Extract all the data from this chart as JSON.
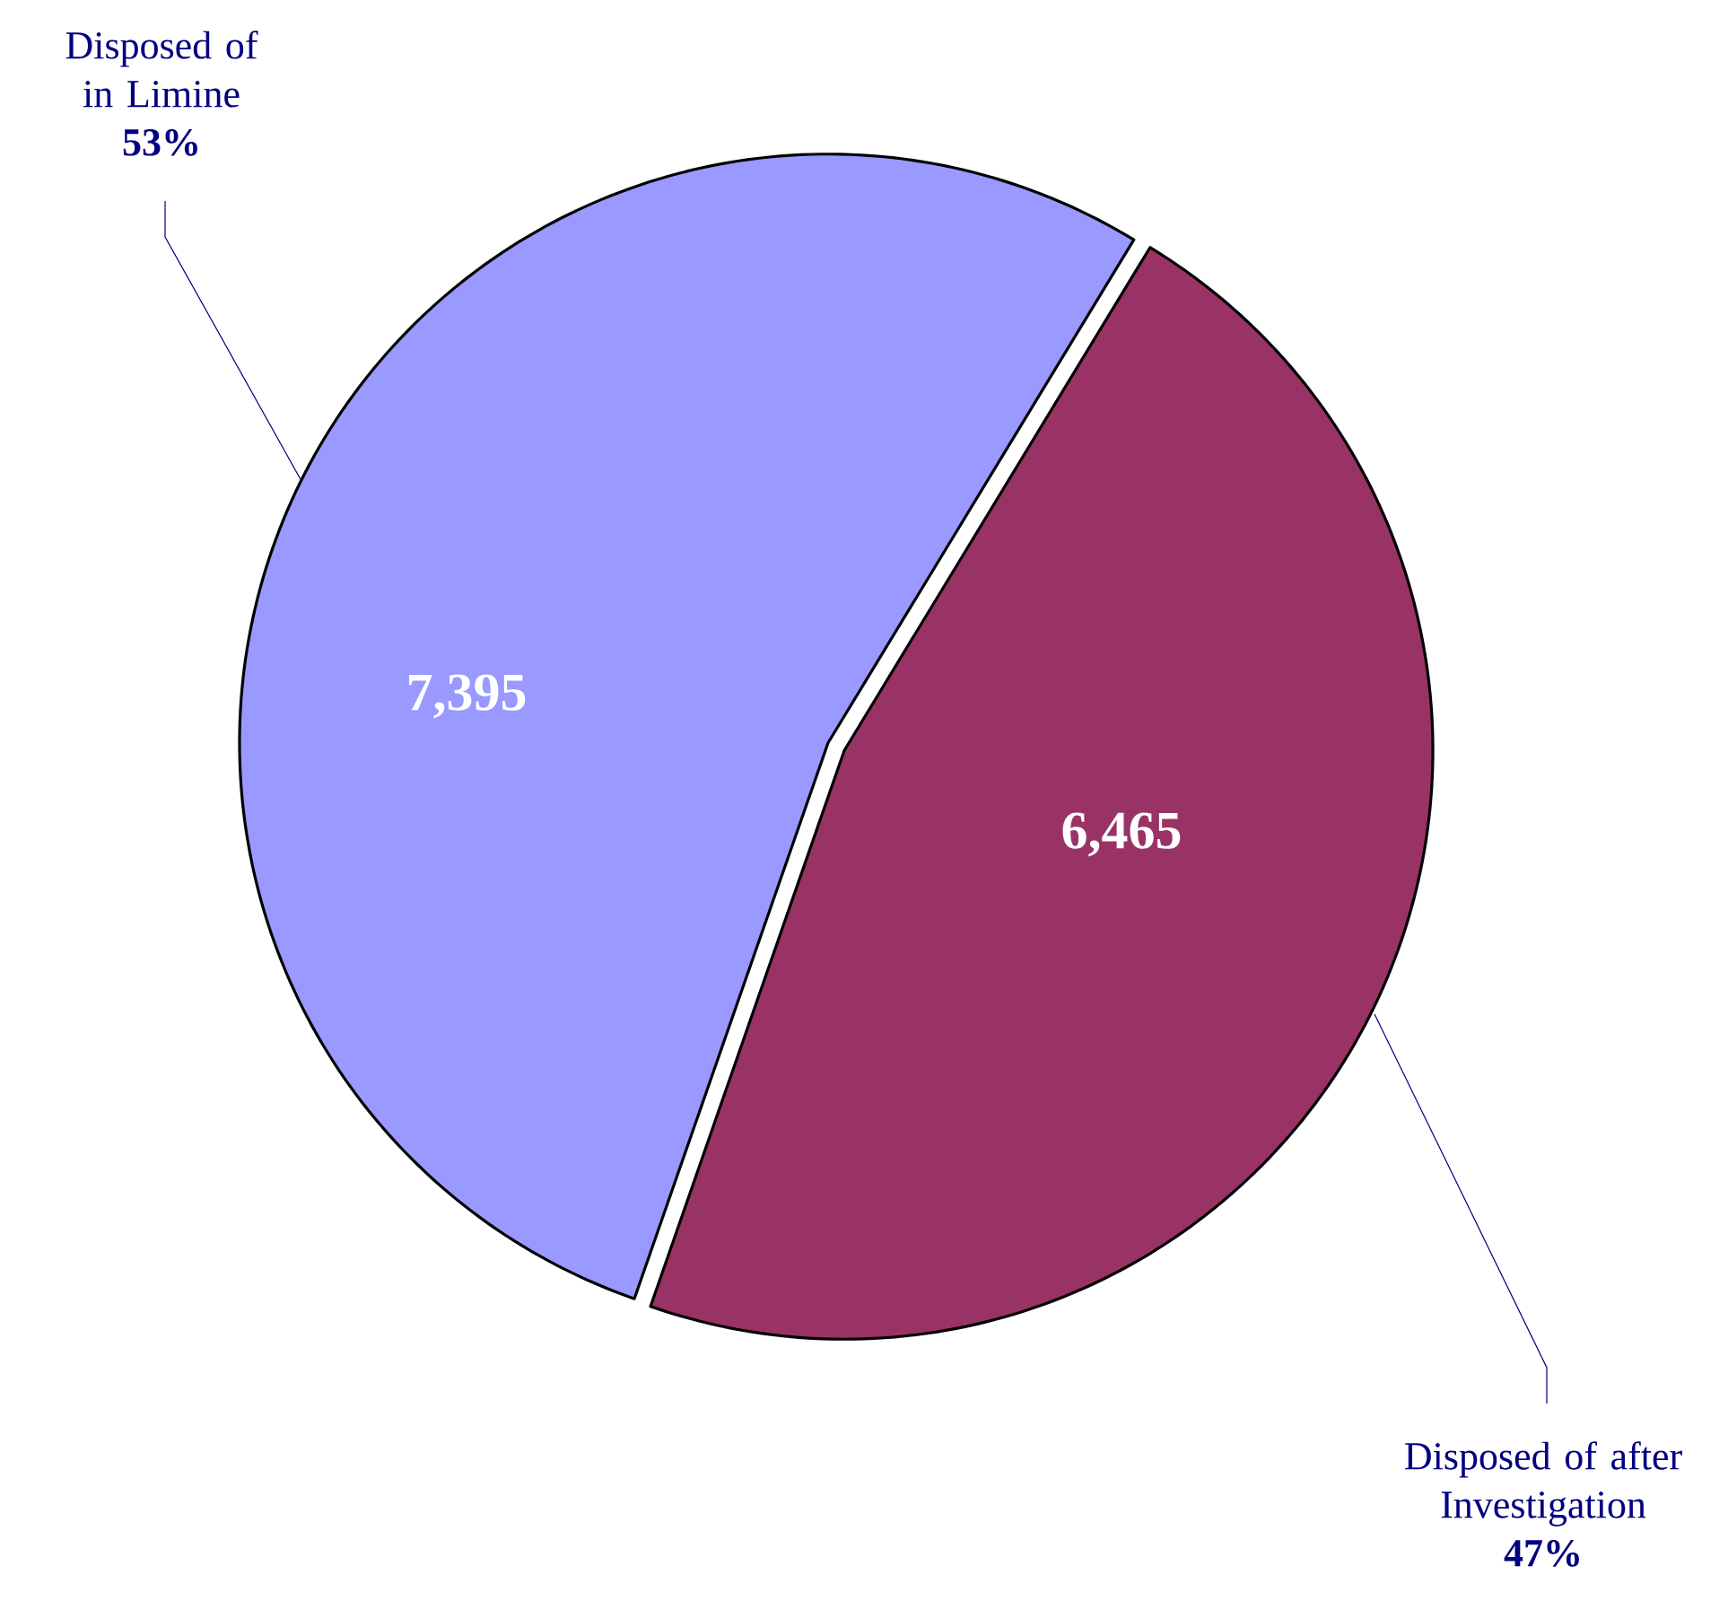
{
  "chart_data": {
    "type": "pie",
    "categories": [
      "Disposed of in Limine",
      "Disposed of after Investigation"
    ],
    "values": [
      7395,
      6465
    ],
    "colors": [
      "#9999ff",
      "#993366"
    ],
    "value_labels": [
      "7,395",
      "6,465"
    ],
    "annotations": [
      "53%",
      "47%"
    ]
  }
}
